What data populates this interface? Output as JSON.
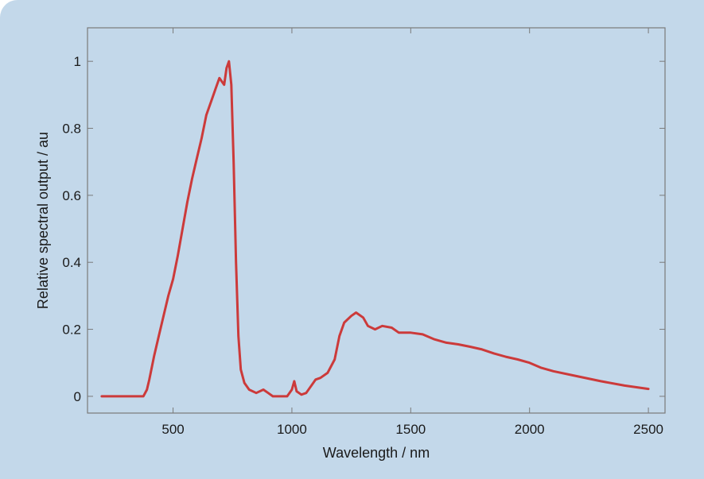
{
  "chart_data": {
    "type": "line",
    "title": "",
    "xlabel": "Wavelength / nm",
    "ylabel": "Relative spectral output / au",
    "xlim": [
      140,
      2570
    ],
    "ylim": [
      -0.05,
      1.1
    ],
    "x_ticks": [
      500,
      1000,
      1500,
      2000,
      2500
    ],
    "y_ticks": [
      0,
      0.2,
      0.4,
      0.6,
      0.8,
      1
    ],
    "x_tick_labels": [
      "500",
      "1000",
      "1500",
      "2000",
      "2500"
    ],
    "y_tick_labels": [
      "0",
      "0.2",
      "0.4",
      "0.6",
      "0.8",
      "1"
    ],
    "grid": false,
    "line_color": "#cc3a3a",
    "panel_color": "#c3d8ea",
    "series": [
      {
        "x": [
          200,
          300,
          375,
          390,
          400,
          420,
          440,
          460,
          480,
          500,
          520,
          540,
          560,
          580,
          600,
          620,
          640,
          660,
          680,
          695,
          705,
          715,
          725,
          735,
          745,
          755,
          765,
          775,
          785,
          800,
          820,
          850,
          880,
          900,
          920,
          950,
          980,
          1000,
          1010,
          1020,
          1040,
          1060,
          1080,
          1100,
          1120,
          1150,
          1180,
          1200,
          1220,
          1250,
          1270,
          1300,
          1320,
          1350,
          1380,
          1420,
          1450,
          1500,
          1550,
          1600,
          1650,
          1700,
          1750,
          1800,
          1850,
          1900,
          1950,
          2000,
          2050,
          2100,
          2200,
          2300,
          2400,
          2500
        ],
        "y": [
          0.0,
          0.0,
          0.0,
          0.02,
          0.05,
          0.12,
          0.18,
          0.24,
          0.3,
          0.35,
          0.42,
          0.5,
          0.58,
          0.65,
          0.71,
          0.77,
          0.84,
          0.88,
          0.92,
          0.95,
          0.94,
          0.93,
          0.98,
          1.0,
          0.93,
          0.7,
          0.4,
          0.18,
          0.08,
          0.04,
          0.02,
          0.01,
          0.02,
          0.01,
          0.0,
          0.0,
          0.0,
          0.02,
          0.045,
          0.015,
          0.005,
          0.01,
          0.03,
          0.05,
          0.055,
          0.07,
          0.11,
          0.18,
          0.22,
          0.24,
          0.25,
          0.235,
          0.21,
          0.2,
          0.21,
          0.205,
          0.19,
          0.19,
          0.185,
          0.17,
          0.16,
          0.155,
          0.148,
          0.14,
          0.128,
          0.118,
          0.11,
          0.1,
          0.085,
          0.075,
          0.06,
          0.045,
          0.032,
          0.022
        ]
      }
    ]
  }
}
